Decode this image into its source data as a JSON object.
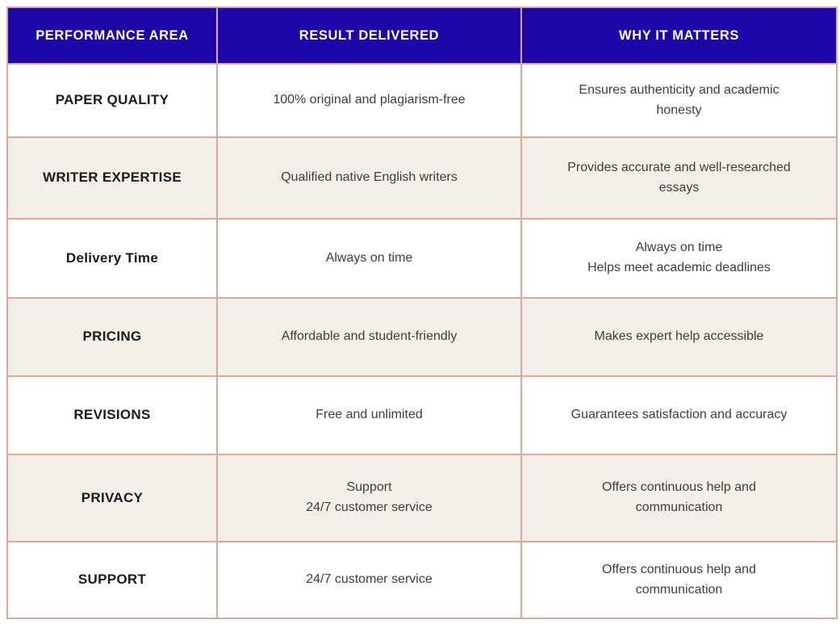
{
  "colors": {
    "header_bg": "#1e07a8",
    "header_text": "#ffffff",
    "border": "#e0a89a",
    "row_bg": "#ffffff",
    "row_alt_bg": "#f2efe9",
    "body_text": "#3d3d3d",
    "area_text": "#1a1a1a"
  },
  "table": {
    "headers": [
      "PERFORMANCE AREA",
      "RESULT DELIVERED",
      "WHY IT MATTERS"
    ],
    "rows": [
      {
        "area": "PAPER QUALITY",
        "result": "100% original and plagiarism-free",
        "why": "Ensures authenticity and academic\nhonesty"
      },
      {
        "area": "WRITER EXPERTISE",
        "result": "Qualified native English writers",
        "why": "Provides accurate and well-researched\nessays"
      },
      {
        "area": "Delivery Time",
        "result": "Always on time",
        "why": "Always on time\nHelps meet academic deadlines"
      },
      {
        "area": "PRICING",
        "result": "Affordable and student-friendly",
        "why": "Makes expert help accessible"
      },
      {
        "area": "REVISIONS",
        "result": "Free and unlimited",
        "why": "Guarantees satisfaction and accuracy"
      },
      {
        "area": "PRIVACY",
        "result": "Support\n24/7 customer service",
        "why": "Offers continuous help and\ncommunication"
      },
      {
        "area": "SUPPORT",
        "result": "24/7 customer service",
        "why": "Offers continuous help and\ncommunication"
      }
    ]
  }
}
